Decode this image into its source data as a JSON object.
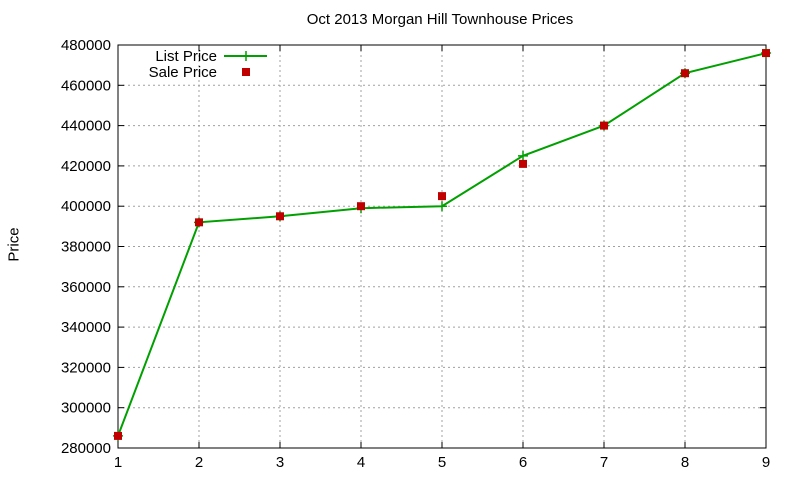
{
  "chart_data": {
    "type": "line",
    "title": "Oct 2013 Morgan Hill Townhouse Prices",
    "xlabel": "",
    "ylabel": "Price",
    "x": [
      1,
      2,
      3,
      4,
      5,
      6,
      7,
      8,
      9
    ],
    "xlim": [
      1,
      9
    ],
    "ylim": [
      280000,
      480000
    ],
    "xticks": [
      1,
      2,
      3,
      4,
      5,
      6,
      7,
      8,
      9
    ],
    "yticks": [
      280000,
      300000,
      320000,
      340000,
      360000,
      380000,
      400000,
      420000,
      440000,
      460000,
      480000
    ],
    "grid": true,
    "legend_position": "top-left",
    "series": [
      {
        "name": "List Price",
        "style": "line-plus",
        "color": "#00a000",
        "values": [
          286000,
          392000,
          395000,
          399000,
          400000,
          425000,
          440000,
          466000,
          476000
        ]
      },
      {
        "name": "Sale Price",
        "style": "square-marker",
        "color": "#c00000",
        "values": [
          286000,
          392000,
          395000,
          400000,
          405000,
          421000,
          440000,
          466000,
          476000
        ]
      }
    ]
  }
}
